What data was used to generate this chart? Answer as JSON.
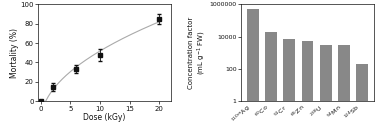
{
  "left": {
    "x": [
      0,
      2,
      6,
      10,
      20
    ],
    "y": [
      0,
      15,
      33,
      48,
      85
    ],
    "yerr": [
      0,
      4,
      4,
      6,
      5
    ],
    "xlabel": "Dose (kGy)",
    "ylabel": "Mortality (%)",
    "xlim": [
      -0.5,
      22
    ],
    "ylim": [
      0,
      100
    ],
    "xticks": [
      0,
      5,
      10,
      15,
      20
    ],
    "yticks": [
      0,
      20,
      40,
      60,
      80,
      100
    ]
  },
  "right": {
    "categories": [
      "$^{110m}$Ag",
      "$^{60}$Co",
      "$^{51}$Cr",
      "$^{65}$Zn",
      "$^{238}$U",
      "$^{54}$Mn",
      "$^{124}$Sb"
    ],
    "values": [
      500000,
      20000,
      7000,
      5000,
      3000,
      3000,
      200
    ],
    "bar_color": "#888888",
    "ylabel_line1": "Concentration factor",
    "ylabel_line2": "(mL g$^{-1}$ FW)",
    "ylim": [
      1,
      1000000
    ],
    "yticks": [
      1,
      100,
      10000,
      1000000
    ],
    "yticklabels": [
      "1",
      "100",
      "10000",
      "1000000"
    ]
  },
  "bg_color": "#ffffff",
  "line_color": "#aaaaaa",
  "marker_color": "#111111",
  "text_color": "#111111"
}
